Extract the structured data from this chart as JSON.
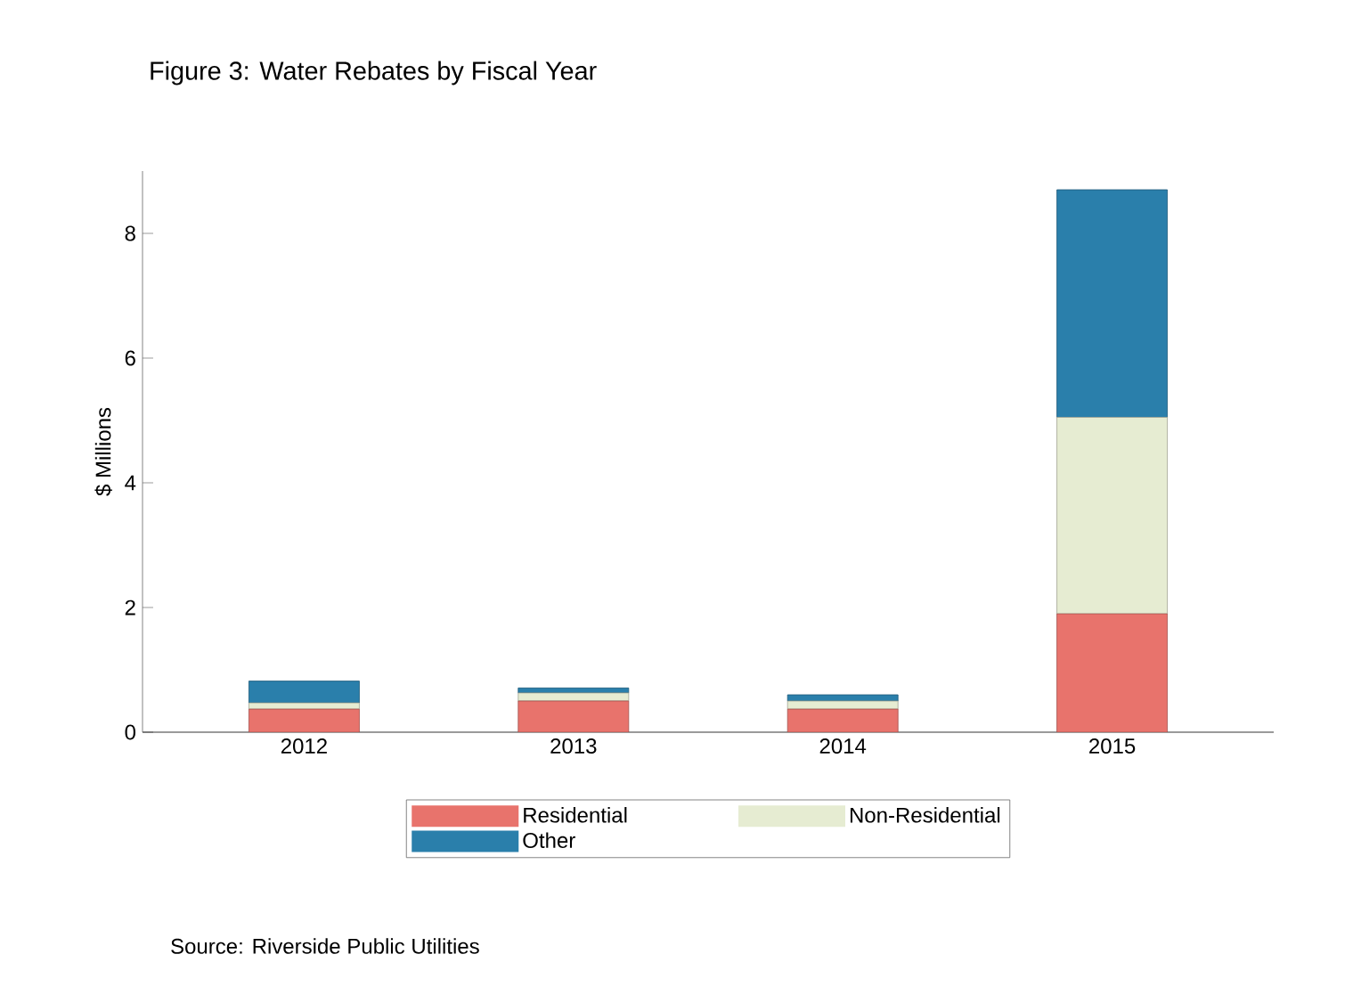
{
  "chart_data": {
    "type": "bar",
    "title": "Figure 3: Water Rebates by Fiscal Year",
    "ylabel": "$ Millions",
    "categories": [
      "2012",
      "2013",
      "2014",
      "2015"
    ],
    "stacked": true,
    "ylim": [
      0,
      9
    ],
    "yticks": [
      0,
      2,
      4,
      6,
      8
    ],
    "legend": "bottom",
    "annotations": [
      "Source: Riverside Public Utilities"
    ],
    "series": [
      {
        "name": "Residential",
        "color": "#e8736c",
        "values": [
          0.37,
          0.5,
          0.37,
          1.9
        ]
      },
      {
        "name": "Non-Residential",
        "color": "#e6ecd2",
        "values": [
          0.1,
          0.13,
          0.13,
          3.15
        ]
      },
      {
        "name": "Other",
        "color": "#2a7fab",
        "values": [
          0.35,
          0.08,
          0.1,
          3.65
        ]
      }
    ]
  }
}
